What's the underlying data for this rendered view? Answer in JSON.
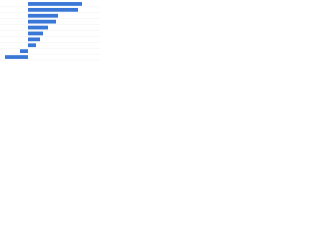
{
  "chart_data": {
    "type": "bar",
    "orientation": "horizontal",
    "categories": [
      null,
      null,
      null,
      null,
      null,
      null,
      null,
      null,
      null,
      null
    ],
    "values": [
      54,
      50,
      30,
      28,
      20,
      15,
      12,
      8,
      -8,
      -23
    ],
    "color": "#3a78d8",
    "xlim": [
      -24,
      56
    ]
  }
}
